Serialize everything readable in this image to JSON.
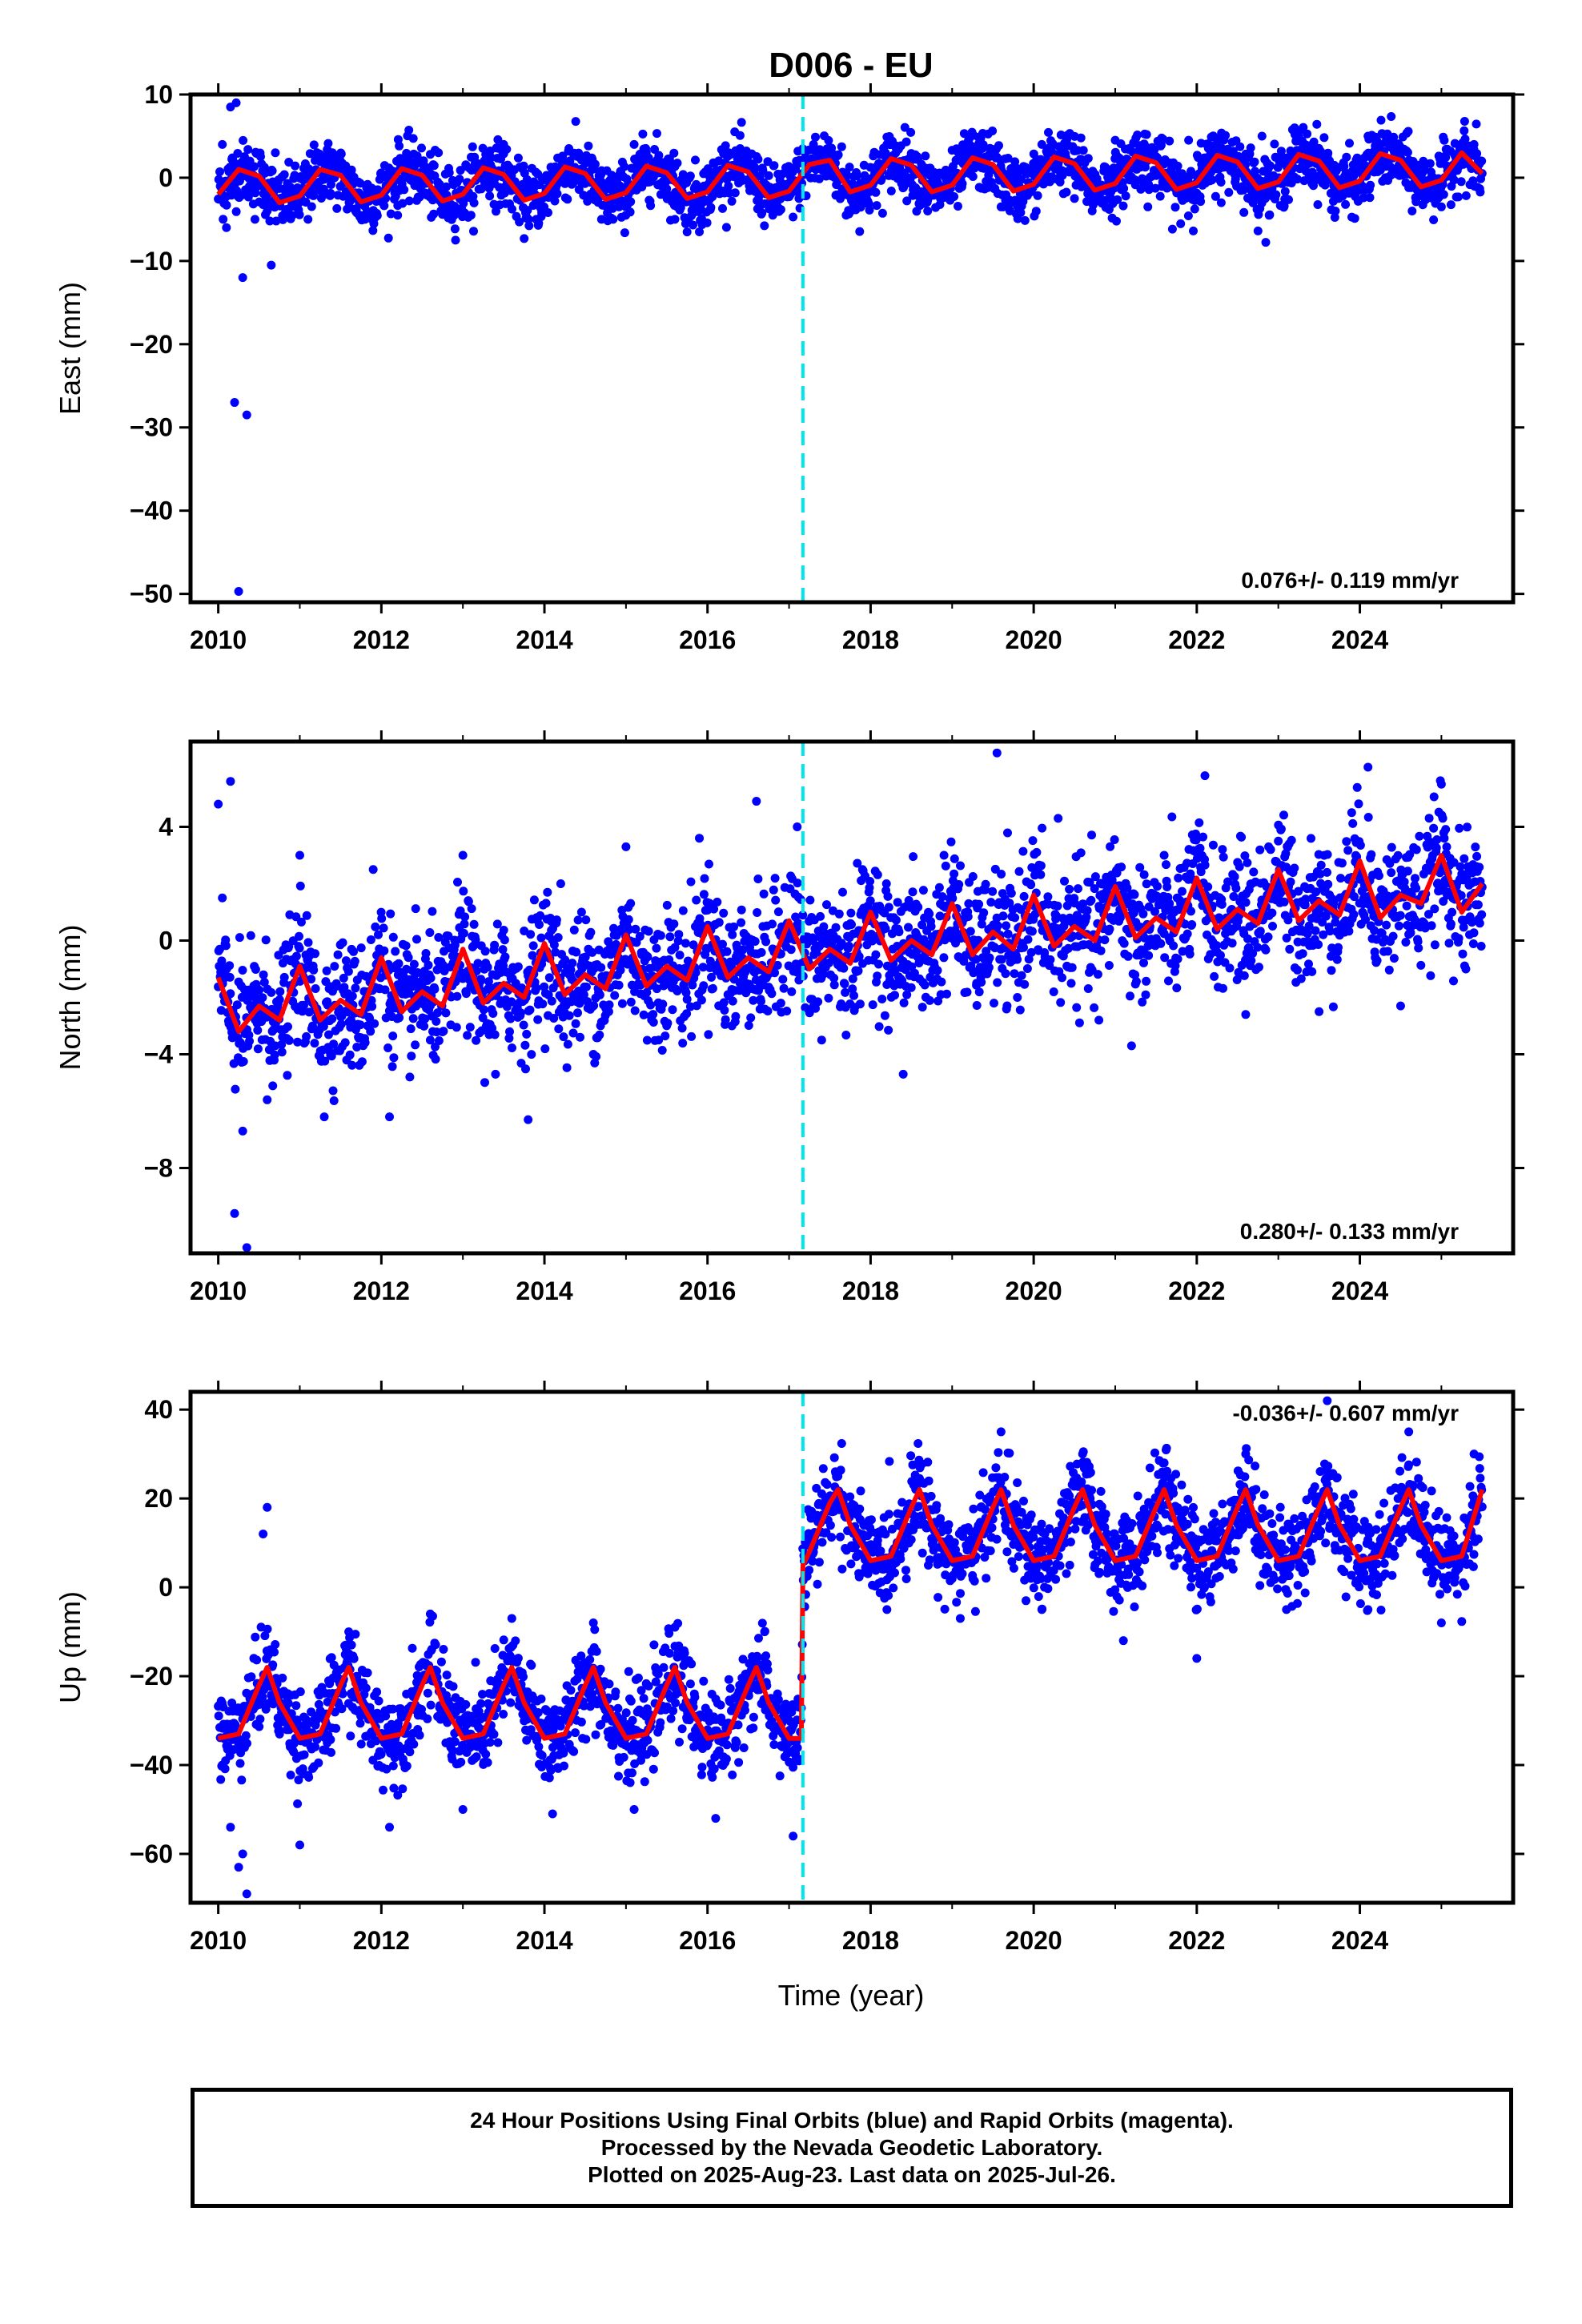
{
  "title": "D006 - EU",
  "xlabel": "Time (year)",
  "footer": [
    "24 Hour Positions Using Final Orbits (blue) and Rapid Orbits (magenta).",
    "Processed by the Nevada Geodetic Laboratory.",
    "Plotted on 2025-Aug-23. Last data on 2025-Jul-26."
  ],
  "colors": {
    "points": "#0000ff",
    "fit": "#ff0000",
    "offset_line": "#00e5ee",
    "frame": "#000000"
  },
  "chart_data": [
    {
      "type": "scatter",
      "ylabel": "East (mm)",
      "xlim": [
        2009.66,
        2025.88
      ],
      "ylim": [
        -51,
        10
      ],
      "xticks": [
        2010,
        2012,
        2014,
        2016,
        2018,
        2020,
        2022,
        2024
      ],
      "yticks": [
        10,
        0,
        -10,
        -20,
        -30,
        -40,
        -50
      ],
      "rate_text": "0.076+/- 0.119 mm/yr",
      "rate_position": "bottom-right",
      "offset_epoch": 2017.17,
      "series": [
        {
          "kind": "fit",
          "x": [
            2010.0,
            2010.25,
            2010.5,
            2010.75,
            2011.0,
            2011.25,
            2011.5,
            2011.75,
            2012.0,
            2012.25,
            2012.5,
            2012.75,
            2013.0,
            2013.25,
            2013.5,
            2013.75,
            2014.0,
            2014.25,
            2014.5,
            2014.75,
            2015.0,
            2015.25,
            2015.5,
            2015.75,
            2016.0,
            2016.25,
            2016.5,
            2016.75,
            2017.0,
            2017.25,
            2017.5,
            2017.75,
            2018.0,
            2018.25,
            2018.5,
            2018.75,
            2019.0,
            2019.25,
            2019.5,
            2019.75,
            2020.0,
            2020.25,
            2020.5,
            2020.75,
            2021.0,
            2021.25,
            2021.5,
            2021.75,
            2022.0,
            2022.25,
            2022.5,
            2022.75,
            2023.0,
            2023.25,
            2023.5,
            2023.75,
            2024.0,
            2024.25,
            2024.5,
            2024.75,
            2025.0,
            2025.25,
            2025.5
          ],
          "y": [
            -2.0,
            1.0,
            0.2,
            -3.0,
            -2.2,
            1.0,
            0.3,
            -2.9,
            -2.1,
            1.1,
            0.3,
            -2.8,
            -2.0,
            1.2,
            0.4,
            -2.7,
            -1.9,
            1.3,
            0.5,
            -2.6,
            -1.8,
            1.4,
            0.6,
            -2.5,
            -1.7,
            1.5,
            0.7,
            -2.4,
            -1.6,
            1.6,
            2.1,
            -1.7,
            -0.9,
            2.3,
            1.5,
            -1.7,
            -0.9,
            2.4,
            1.6,
            -1.6,
            -0.8,
            2.5,
            1.7,
            -1.5,
            -0.7,
            2.6,
            1.8,
            -1.4,
            -0.6,
            2.7,
            1.9,
            -1.3,
            -0.5,
            2.8,
            2.0,
            -1.2,
            -0.4,
            2.9,
            2.1,
            -1.1,
            -0.3,
            3.0,
            0.5
          ]
        },
        {
          "kind": "points",
          "x": [
            2010.05,
            2010.1,
            2010.15,
            2010.2,
            2010.22,
            2010.25,
            2010.3,
            2010.35,
            2010.45,
            2010.6,
            2010.65,
            2010.7,
            2011.1,
            2011.4,
            2011.8,
            2012.2,
            2012.7,
            2013.1,
            2013.5,
            2013.9,
            2014.3,
            2014.7,
            2015.1,
            2015.6,
            2015.9,
            2016.4,
            2016.8,
            2017.3,
            2017.7,
            2018.2,
            2018.7,
            2019.2,
            2019.6,
            2020.1,
            2020.5,
            2021.0,
            2021.4,
            2021.9,
            2022.3,
            2022.8,
            2023.2,
            2023.7,
            2024.1,
            2024.5,
            2025.0,
            2025.4
          ],
          "y": [
            4.0,
            -6.0,
            8.5,
            -27.0,
            9.0,
            -49.7,
            -12.0,
            -28.5,
            -5.0,
            -4.0,
            -10.5,
            3.0,
            -5.0,
            3.0,
            -5.0,
            -4.5,
            3.0,
            -4.5,
            4.0,
            -5.0,
            3.5,
            -5.0,
            4.0,
            -5.0,
            -6.5,
            3.5,
            -4.5,
            4.0,
            -4.5,
            4.0,
            -4.0,
            4.5,
            -3.5,
            4.0,
            -2.5,
            4.5,
            -3.5,
            4.5,
            -3.0,
            5.0,
            6.0,
            -4.0,
            5.0,
            3.0,
            -3.5,
            4.0
          ]
        }
      ]
    },
    {
      "type": "scatter",
      "ylabel": "North (mm)",
      "xlim": [
        2009.66,
        2025.88
      ],
      "ylim": [
        -11,
        7
      ],
      "xticks": [
        2010,
        2012,
        2014,
        2016,
        2018,
        2020,
        2022,
        2024
      ],
      "yticks": [
        4,
        0,
        -4,
        -8
      ],
      "rate_text": "0.280+/- 0.133 mm/yr",
      "rate_position": "bottom-right",
      "offset_epoch": 2017.17,
      "series": [
        {
          "kind": "fit",
          "x": [
            2010.0,
            2010.25,
            2010.5,
            2010.75,
            2011.0,
            2011.25,
            2011.5,
            2011.75,
            2012.0,
            2012.25,
            2012.5,
            2012.75,
            2013.0,
            2013.25,
            2013.5,
            2013.75,
            2014.0,
            2014.25,
            2014.5,
            2014.75,
            2015.0,
            2015.25,
            2015.5,
            2015.75,
            2016.0,
            2016.25,
            2016.5,
            2016.75,
            2017.0,
            2017.25,
            2017.5,
            2017.75,
            2018.0,
            2018.25,
            2018.5,
            2018.75,
            2019.0,
            2019.25,
            2019.5,
            2019.75,
            2020.0,
            2020.25,
            2020.5,
            2020.75,
            2021.0,
            2021.25,
            2021.5,
            2021.75,
            2022.0,
            2022.25,
            2022.5,
            2022.75,
            2023.0,
            2023.25,
            2023.5,
            2023.75,
            2024.0,
            2024.25,
            2024.5,
            2024.75,
            2025.0,
            2025.25,
            2025.5
          ],
          "y": [
            -1.3,
            -3.2,
            -2.3,
            -2.8,
            -0.9,
            -2.8,
            -2.1,
            -2.6,
            -0.6,
            -2.5,
            -1.8,
            -2.3,
            -0.3,
            -2.2,
            -1.5,
            -2.0,
            -0.1,
            -1.9,
            -1.2,
            -1.7,
            0.2,
            -1.6,
            -0.9,
            -1.4,
            0.5,
            -1.3,
            -0.6,
            -1.1,
            0.7,
            -1.0,
            -0.3,
            -0.8,
            1.0,
            -0.7,
            0.0,
            -0.5,
            1.3,
            -0.5,
            0.3,
            -0.3,
            1.6,
            -0.2,
            0.5,
            0.0,
            1.9,
            0.1,
            0.8,
            0.3,
            2.2,
            0.4,
            1.1,
            0.6,
            2.5,
            0.7,
            1.4,
            0.9,
            2.8,
            0.8,
            1.6,
            1.3,
            3.0,
            1.0,
            2.0
          ]
        },
        {
          "kind": "points",
          "x": [
            2010.0,
            2010.05,
            2010.15,
            2010.2,
            2010.3,
            2010.35,
            2010.6,
            2011.0,
            2011.3,
            2011.9,
            2012.1,
            2012.6,
            2013.0,
            2013.4,
            2013.8,
            2014.2,
            2014.6,
            2015.0,
            2015.4,
            2015.9,
            2016.3,
            2016.6,
            2016.9,
            2017.1,
            2017.4,
            2017.9,
            2018.4,
            2018.9,
            2019.3,
            2019.55,
            2019.8,
            2020.3,
            2020.8,
            2021.2,
            2021.6,
            2022.1,
            2022.6,
            2023.0,
            2023.5,
            2023.9,
            2024.1,
            2024.5,
            2025.0,
            2025.3
          ],
          "y": [
            4.8,
            1.5,
            5.6,
            -9.6,
            -6.7,
            -10.8,
            -5.6,
            3.0,
            -6.2,
            2.5,
            -6.2,
            -3.5,
            3.0,
            -4.7,
            -6.3,
            2.0,
            -4.0,
            3.3,
            -3.5,
            3.6,
            -3.0,
            4.9,
            -2.2,
            4.0,
            -3.5,
            2.5,
            -4.7,
            3.0,
            -1.5,
            6.6,
            -2.0,
            4.3,
            -2.8,
            -3.7,
            3.0,
            5.8,
            -2.6,
            3.5,
            -2.5,
            4.5,
            6.1,
            -2.3,
            5.5,
            -1.0
          ]
        }
      ]
    },
    {
      "type": "scatter",
      "ylabel": "Up (mm)",
      "xlim": [
        2009.66,
        2025.88
      ],
      "ylim": [
        -71,
        44
      ],
      "xticks": [
        2010,
        2012,
        2014,
        2016,
        2018,
        2020,
        2022,
        2024
      ],
      "yticks": [
        40,
        20,
        0,
        -20,
        -40,
        -60
      ],
      "rate_text": "-0.036+/- 0.607 mm/yr",
      "rate_position": "top-right",
      "offset_epoch": 2017.17,
      "series": [
        {
          "kind": "fit",
          "x": [
            2010.0,
            2010.25,
            2010.5,
            2010.6,
            2010.75,
            2011.0,
            2011.25,
            2011.5,
            2011.6,
            2011.75,
            2012.0,
            2012.25,
            2012.5,
            2012.6,
            2012.75,
            2013.0,
            2013.25,
            2013.5,
            2013.6,
            2013.75,
            2014.0,
            2014.25,
            2014.5,
            2014.6,
            2014.75,
            2015.0,
            2015.25,
            2015.5,
            2015.6,
            2015.75,
            2016.0,
            2016.25,
            2016.5,
            2016.6,
            2016.75,
            2017.0,
            2017.15,
            2017.17,
            2017.25,
            2017.5,
            2017.6,
            2017.75,
            2018.0,
            2018.25,
            2018.5,
            2018.6,
            2018.75,
            2019.0,
            2019.25,
            2019.5,
            2019.6,
            2019.75,
            2020.0,
            2020.25,
            2020.5,
            2020.6,
            2020.75,
            2021.0,
            2021.25,
            2021.5,
            2021.6,
            2021.75,
            2022.0,
            2022.25,
            2022.5,
            2022.6,
            2022.75,
            2023.0,
            2023.25,
            2023.5,
            2023.6,
            2023.75,
            2024.0,
            2024.25,
            2024.5,
            2024.6,
            2024.75,
            2025.0,
            2025.25,
            2025.5
          ],
          "y": [
            -34,
            -33,
            -22,
            -18,
            -26,
            -34,
            -33,
            -22,
            -18,
            -26,
            -34,
            -33,
            -22,
            -18,
            -26,
            -34,
            -33,
            -22,
            -18,
            -26,
            -34,
            -33,
            -22,
            -18,
            -26,
            -34,
            -33,
            -22,
            -18,
            -26,
            -34,
            -33,
            -22,
            -18,
            -26,
            -34,
            -34,
            5,
            8,
            19,
            22,
            14,
            6,
            7,
            18,
            22,
            14,
            6,
            7,
            18,
            22,
            14,
            6,
            7,
            18,
            22,
            14,
            6,
            7,
            18,
            22,
            14,
            6,
            7,
            18,
            22,
            14,
            6,
            7,
            18,
            22,
            14,
            6,
            7,
            18,
            22,
            14,
            6,
            7,
            22
          ]
        },
        {
          "kind": "points",
          "x": [
            2010.05,
            2010.15,
            2010.25,
            2010.3,
            2010.35,
            2010.55,
            2010.6,
            2011.0,
            2011.6,
            2012.1,
            2012.6,
            2013.0,
            2013.6,
            2014.1,
            2014.6,
            2015.1,
            2015.6,
            2016.1,
            2016.7,
            2017.05,
            2017.3,
            2017.6,
            2018.2,
            2018.6,
            2019.1,
            2019.6,
            2020.1,
            2020.6,
            2021.1,
            2021.6,
            2022.0,
            2022.6,
            2023.1,
            2023.6,
            2024.1,
            2024.6,
            2025.0,
            2025.4
          ],
          "y": [
            -40,
            -54,
            -63,
            -60,
            -69,
            12,
            18,
            -58,
            -10,
            -54,
            -6,
            -50,
            -7,
            -51,
            -8,
            -50,
            -9,
            -52,
            -10,
            -56,
            10,
            25,
            -5,
            28,
            -7,
            35,
            -5,
            30,
            -12,
            28,
            -16,
            30,
            -5,
            42,
            -5,
            35,
            -8,
            30
          ]
        }
      ]
    }
  ]
}
